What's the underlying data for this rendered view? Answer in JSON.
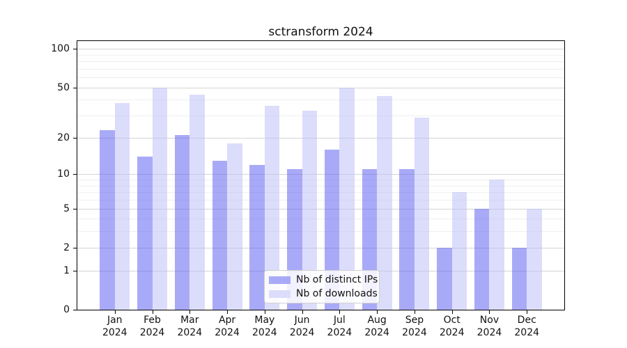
{
  "title": "sctransform 2024",
  "legend": {
    "items": [
      {
        "label": "Nb of distinct IPs",
        "color": "#a9aaf7"
      },
      {
        "label": "Nb of downloads",
        "color": "#dcddfa"
      }
    ]
  },
  "y_axis": {
    "labeled_ticks": [
      100,
      50,
      20,
      10,
      5,
      2,
      1,
      0
    ],
    "major_gridlines": [
      1,
      2,
      5,
      10,
      20,
      50,
      100
    ],
    "minor_gridlines": [
      3,
      4,
      6,
      7,
      8,
      9,
      30,
      40,
      60,
      70,
      80,
      90
    ]
  },
  "chart_data": {
    "type": "bar",
    "title": "sctransform 2024",
    "categories": [
      "Jan 2024",
      "Feb 2024",
      "Mar 2024",
      "Apr 2024",
      "May 2024",
      "Jun 2024",
      "Jul 2024",
      "Aug 2024",
      "Sep 2024",
      "Oct 2024",
      "Nov 2024",
      "Dec 2024"
    ],
    "series": [
      {
        "name": "Nb of distinct IPs",
        "color": "#a9aaf7",
        "fill_rgba": "rgba(83,85,239,0.5)",
        "values": [
          23,
          14,
          21,
          13,
          12,
          11,
          16,
          11,
          11,
          2,
          5,
          2
        ]
      },
      {
        "name": "Nb of downloads",
        "color": "#dcddfa",
        "fill_rgba": "rgba(185,187,245,0.5)",
        "values": [
          38,
          50,
          44,
          18,
          36,
          33,
          50,
          43,
          29,
          7,
          9,
          5
        ]
      }
    ],
    "xlabel": "",
    "ylabel": "",
    "yscale": "log1p",
    "ylim": [
      0,
      115
    ],
    "grid": true,
    "legend_position": "lower center"
  }
}
